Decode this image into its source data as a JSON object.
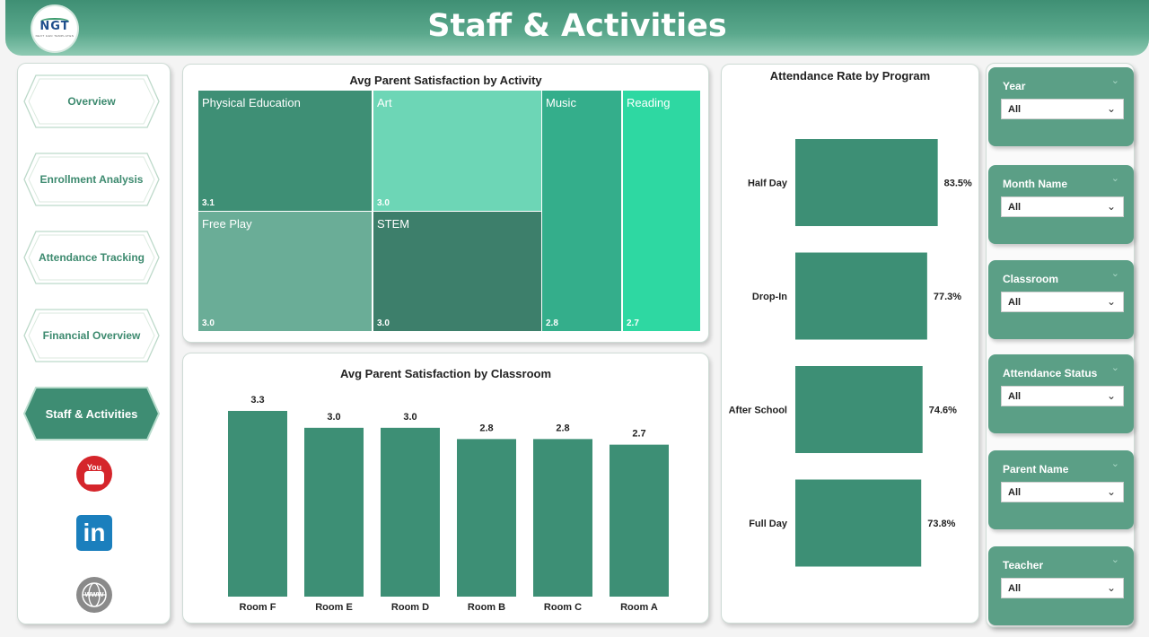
{
  "header": {
    "title": "Staff & Activities",
    "logo_text": "NGT",
    "logo_subtext": "NEXT GEN TEMPLATES"
  },
  "nav": {
    "items": [
      {
        "label": "Overview",
        "active": false
      },
      {
        "label": "Enrollment Analysis",
        "active": false
      },
      {
        "label": "Attendance Tracking",
        "active": false
      },
      {
        "label": "Financial Overview",
        "active": false
      },
      {
        "label": "Staff & Activities",
        "active": true
      }
    ],
    "social": [
      "youtube-icon",
      "linkedin-icon",
      "website-globe-icon"
    ],
    "youtube_text": "You Tube",
    "linkedin_text": "in",
    "globe_text": "www"
  },
  "colors": {
    "accent": "#3f8f74",
    "bar": "#3d8f75",
    "slicer": "#5b9f86"
  },
  "chart_data": [
    {
      "type": "treemap",
      "title": "Avg Parent Satisfaction by Activity",
      "items": [
        {
          "name": "Physical Education",
          "value": "3.1",
          "color": "#3e8f75"
        },
        {
          "name": "Art",
          "value": "3.0",
          "color": "#6dd6b6"
        },
        {
          "name": "Music",
          "value": "2.8",
          "color": "#34ae8b"
        },
        {
          "name": "Reading",
          "value": "2.7",
          "color": "#2ed8a2"
        },
        {
          "name": "Free Play",
          "value": "3.0",
          "color": "#6aad97"
        },
        {
          "name": "STEM",
          "value": "3.0",
          "color": "#3d7f6b"
        }
      ]
    },
    {
      "type": "bar",
      "title": "Avg Parent Satisfaction by Classroom",
      "categories": [
        "Room F",
        "Room E",
        "Room D",
        "Room B",
        "Room C",
        "Room A"
      ],
      "values": [
        3.3,
        3.0,
        3.0,
        2.8,
        2.8,
        2.7
      ],
      "labels": [
        "3.3",
        "3.0",
        "3.0",
        "2.8",
        "2.8",
        "2.7"
      ],
      "ylim": [
        0,
        3.3
      ]
    },
    {
      "type": "bar",
      "orientation": "horizontal",
      "title": "Attendance Rate by Program",
      "categories": [
        "Half Day",
        "Drop-In",
        "After School",
        "Full Day"
      ],
      "values": [
        83.5,
        77.3,
        74.6,
        73.8
      ],
      "labels": [
        "83.5%",
        "77.3%",
        "74.6%",
        "73.8%"
      ],
      "xlim": [
        0,
        100
      ]
    }
  ],
  "filters": [
    {
      "label": "Year",
      "value": "All"
    },
    {
      "label": "Month Name",
      "value": "All"
    },
    {
      "label": "Classroom",
      "value": "All"
    },
    {
      "label": "Attendance Status",
      "value": "All"
    },
    {
      "label": "Parent Name",
      "value": "All"
    },
    {
      "label": "Teacher",
      "value": "All"
    }
  ]
}
